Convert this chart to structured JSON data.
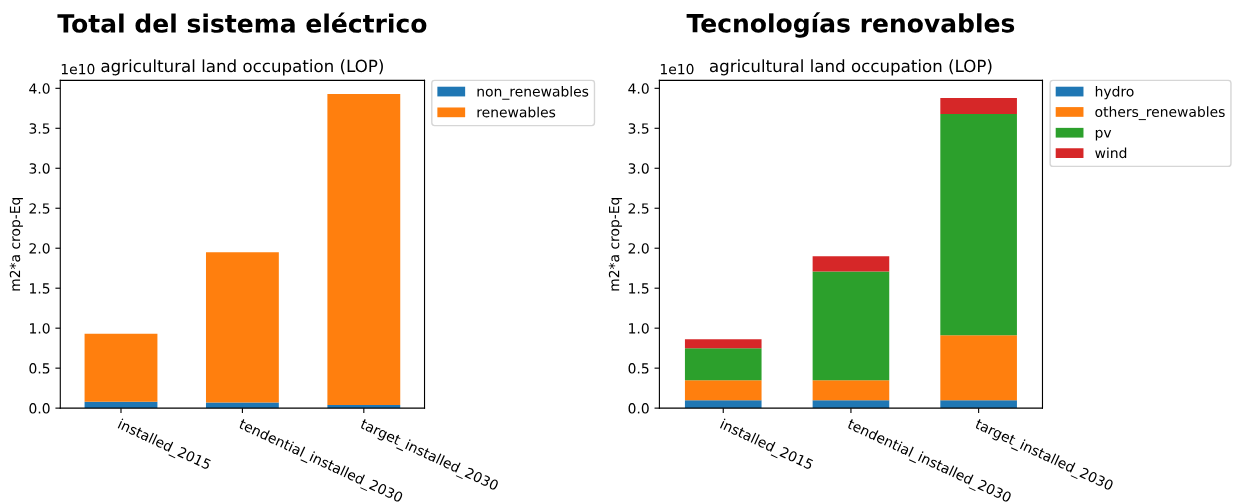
{
  "chart_data": [
    {
      "type": "bar",
      "title": "Total del sistema eléctrico",
      "subtitle": "agricultural land occupation (LOP)",
      "ylabel": "m2*a crop-Eq",
      "annotations": [
        "1e10"
      ],
      "stacked": true,
      "categories": [
        "installed_2015",
        "tendential_installed_2030",
        "target_installed_2030"
      ],
      "series": [
        {
          "name": "non_renewables",
          "color": "#1f77b4",
          "values": [
            0.08,
            0.07,
            0.04
          ]
        },
        {
          "name": "renewables",
          "color": "#ff7f0e",
          "values": [
            0.85,
            1.88,
            3.89
          ]
        }
      ],
      "ylim": [
        0,
        4.1
      ],
      "yticks": [
        {
          "value": 0,
          "label": "0.0"
        },
        0.5,
        {
          "value": 1,
          "label": "1.0"
        },
        1.5,
        {
          "value": 2,
          "label": "2.0"
        },
        2.5,
        {
          "value": 3,
          "label": "3.0"
        },
        3.5,
        {
          "value": 4,
          "label": "4.0"
        }
      ],
      "grid": false,
      "legend": "top right"
    },
    {
      "type": "bar",
      "title": "Tecnologías renovables",
      "subtitle": "agricultural land occupation (LOP)",
      "ylabel": "m2*a crop-Eq",
      "annotations": [
        "1e10"
      ],
      "stacked": true,
      "categories": [
        "installed_2015",
        "tendential_installed_2030",
        "target_installed_2030"
      ],
      "series": [
        {
          "name": "hydro",
          "color": "#1f77b4",
          "values": [
            0.1,
            0.1,
            0.1
          ]
        },
        {
          "name": "others_renewables",
          "color": "#ff7f0e",
          "values": [
            0.25,
            0.25,
            0.81
          ]
        },
        {
          "name": "pv",
          "color": "#2ca02c",
          "values": [
            0.4,
            1.36,
            2.77
          ]
        },
        {
          "name": "wind",
          "color": "#d62728",
          "values": [
            0.11,
            0.19,
            0.2
          ]
        }
      ],
      "ylim": [
        0,
        4.1
      ],
      "yticks": [
        {
          "value": 0,
          "label": "0.0"
        },
        0.5,
        {
          "value": 1,
          "label": "1.0"
        },
        1.5,
        {
          "value": 2,
          "label": "2.0"
        },
        2.5,
        {
          "value": 3,
          "label": "3.0"
        },
        3.5,
        {
          "value": 4,
          "label": "4.0"
        }
      ],
      "grid": false,
      "legend": "top right"
    }
  ]
}
